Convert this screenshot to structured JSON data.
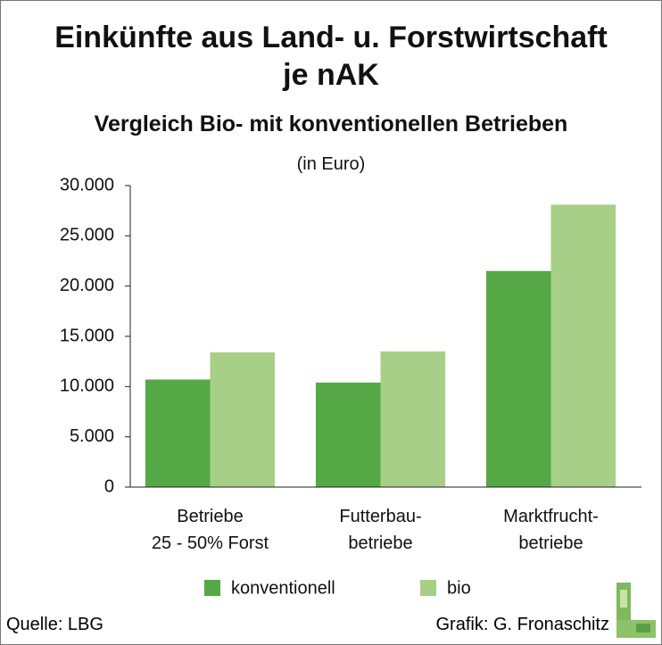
{
  "chart_data": {
    "type": "bar",
    "title": "Einkünfte aus Land- u. Forstwirtschaft\nje nAK",
    "subtitle": "Vergleich Bio- mit konventionellen Betrieben",
    "y_label": "(in Euro)",
    "categories": [
      "Betriebe\n25 - 50% Forst",
      "Futterbau-\nbetriebe",
      "Marktfrucht-\nbetriebe"
    ],
    "series": [
      {
        "name": "konventionell",
        "color": "#55a845",
        "values": [
          10700,
          10400,
          21500
        ]
      },
      {
        "name": "bio",
        "color": "#a8cf87",
        "values": [
          13400,
          13500,
          28100
        ]
      }
    ],
    "ylim": [
      0,
      30000
    ],
    "yticks": [
      0,
      {
        "value": 5000,
        "label": "5.000"
      },
      {
        "value": 10000,
        "label": "10.000"
      },
      {
        "value": 15000,
        "label": "15.000"
      },
      {
        "value": 20000,
        "label": "20.000"
      },
      {
        "value": 25000,
        "label": "25.000"
      },
      {
        "value": 30000,
        "label": "30.000"
      }
    ],
    "source": "Quelle: LBG",
    "credit": "Grafik: G. Fronaschitz"
  }
}
